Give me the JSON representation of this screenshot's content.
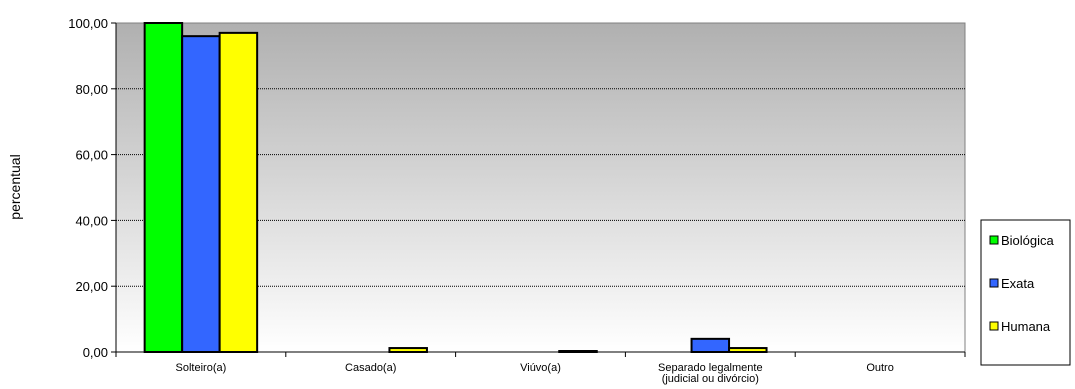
{
  "chart_data": {
    "type": "bar",
    "ylabel": "percentual",
    "xlabel": "",
    "categories": [
      "Solteiro(a)",
      "Casado(a)",
      "Viúvo(a)",
      "Separado legalmente|(judicial ou divórcio)",
      "Outro"
    ],
    "ylim": [
      0,
      100
    ],
    "y_ticks": [
      "0,00",
      "20,00",
      "40,00",
      "60,00",
      "80,00",
      "100,00"
    ],
    "grid": true,
    "legend_position": "right",
    "series": [
      {
        "name": "Biológica",
        "color": "#00ff00",
        "values": [
          100.0,
          0,
          0,
          0,
          0
        ]
      },
      {
        "name": "Exata",
        "color": "#3366ff",
        "values": [
          96.0,
          0,
          0,
          4.0,
          0
        ]
      },
      {
        "name": "Humana",
        "color": "#ffff00",
        "values": [
          97.0,
          1.2,
          0.3,
          1.2,
          0
        ]
      }
    ]
  }
}
